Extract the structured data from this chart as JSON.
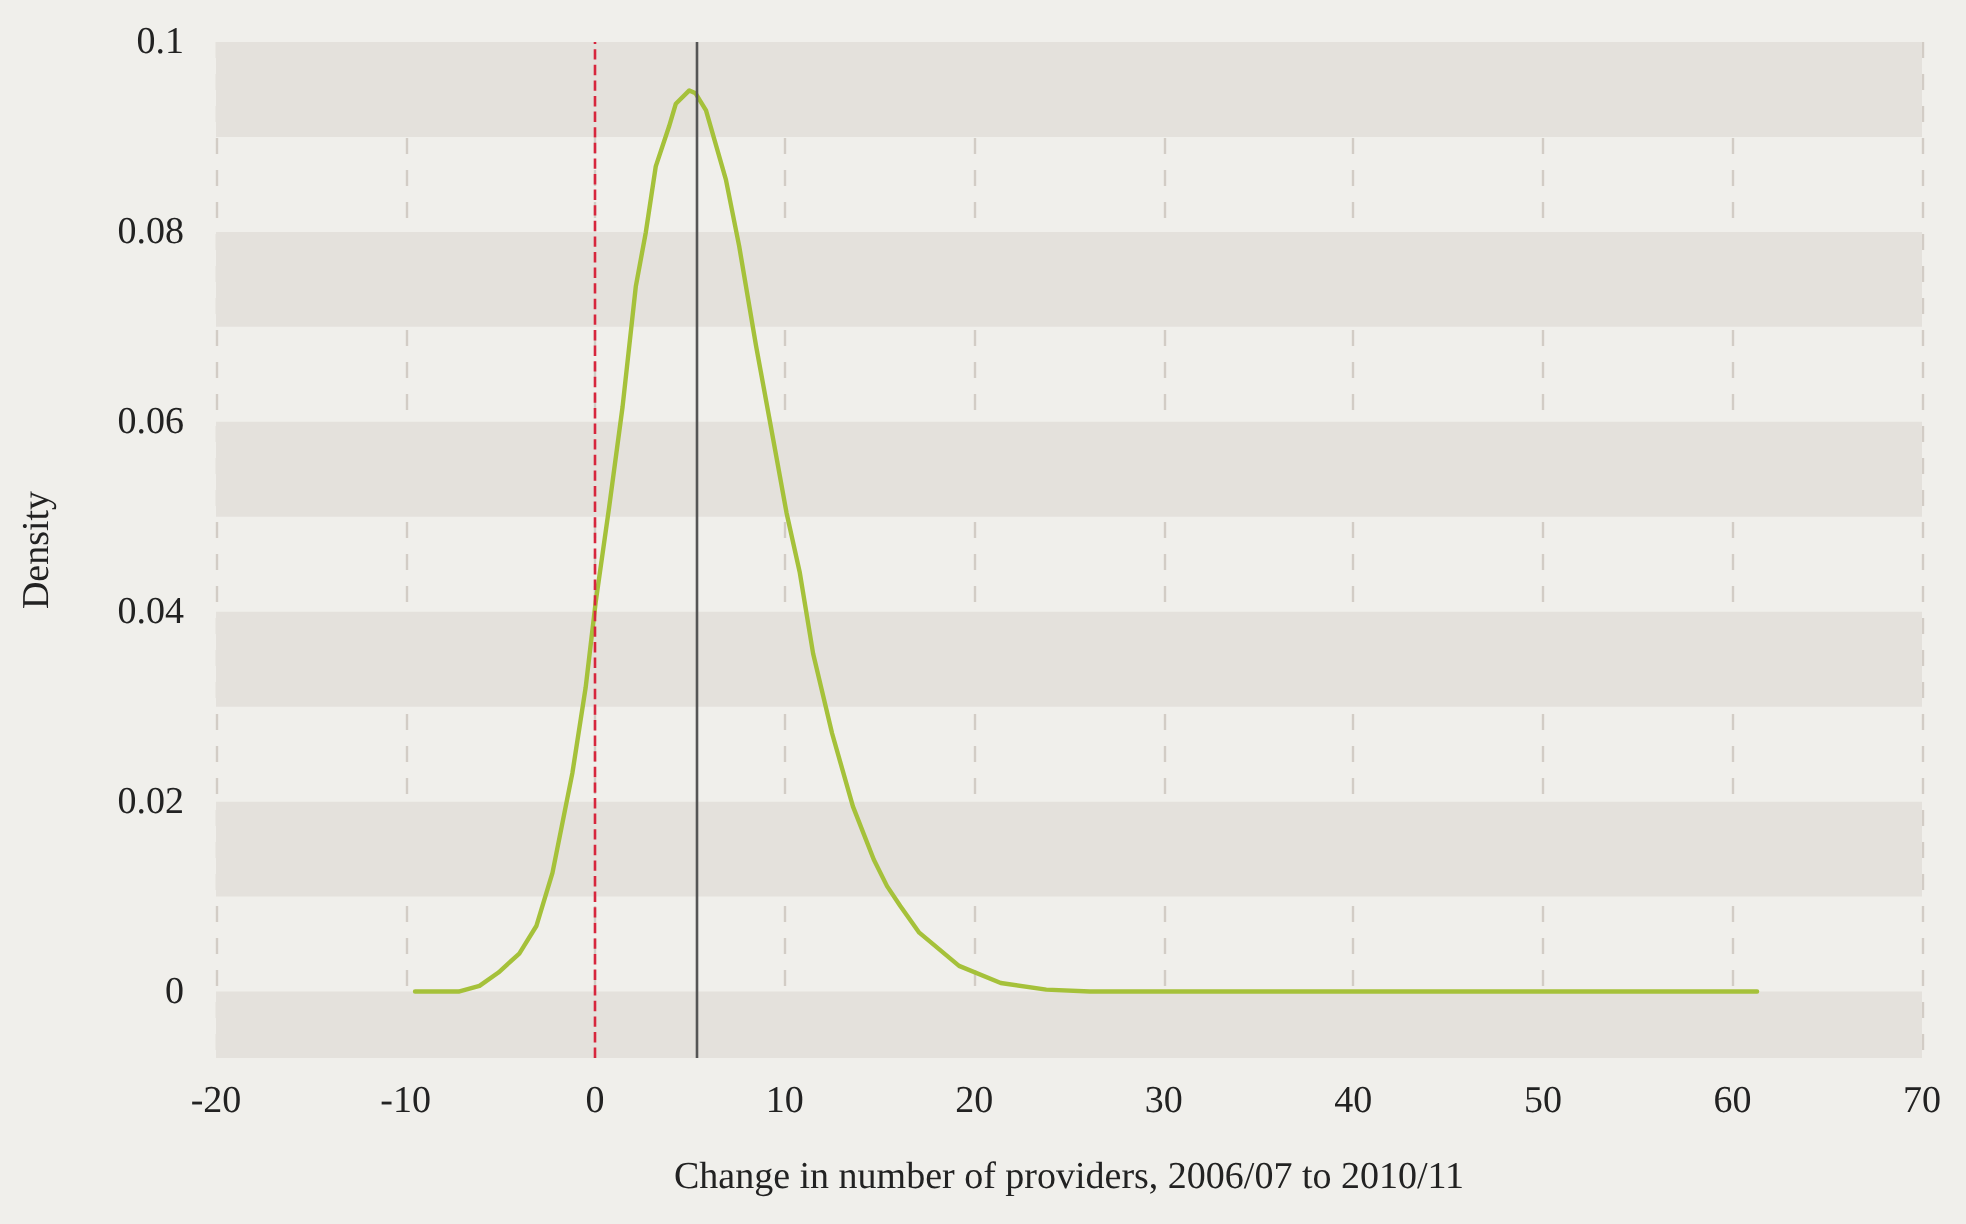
{
  "chart_data": {
    "type": "line",
    "xlabel": "Change in number of providers, 2006/07 to 2010/11",
    "ylabel": "Density",
    "x": [
      -9.5,
      -7.2,
      -6.1,
      -5.1,
      -4.0,
      -3.1,
      -2.25,
      -1.2,
      -0.5,
      0.03,
      0.74,
      1.45,
      2.15,
      2.67,
      3.2,
      3.9,
      4.26,
      4.97,
      5.3,
      5.85,
      6.9,
      7.6,
      8.5,
      9.4,
      10.1,
      10.8,
      11.5,
      12.5,
      13.6,
      14.7,
      15.4,
      16.1,
      17.1,
      19.2,
      21.4,
      23.8,
      26.1,
      35,
      45,
      55,
      61.3
    ],
    "series": [
      {
        "color": "#a5c13a",
        "values": [
          0,
          0,
          0.0006,
          0.002,
          0.004,
          0.0069,
          0.0125,
          0.023,
          0.032,
          0.041,
          0.051,
          0.0616,
          0.0743,
          0.0799,
          0.0869,
          0.0911,
          0.0935,
          0.0949,
          0.0946,
          0.0928,
          0.0855,
          0.0785,
          0.0679,
          0.0581,
          0.0504,
          0.0441,
          0.0356,
          0.0272,
          0.0195,
          0.0139,
          0.0111,
          0.009,
          0.0062,
          0.0027,
          0.0009,
          0.0002,
          0,
          0,
          0,
          0,
          0
        ]
      }
    ],
    "xlim": [
      -20,
      70
    ],
    "xticks": [
      -20,
      -10,
      0,
      10,
      20,
      30,
      40,
      50,
      60,
      70
    ],
    "ylim": [
      -0.007,
      0.1
    ],
    "yticks": [
      0,
      0.02,
      0.04,
      0.06,
      0.08,
      0.1
    ],
    "ref_lines": [
      {
        "axis": "x",
        "value": 0,
        "color": "#d7263d",
        "line_style": "dashed"
      },
      {
        "axis": "x",
        "value": 5.4,
        "color": "#555555",
        "line_style": "solid"
      }
    ],
    "bands": [
      {
        "axis": "y",
        "from": -0.007,
        "to": 0,
        "color": "#e4e1dc"
      },
      {
        "axis": "y",
        "from": 0.01,
        "to": 0.02,
        "color": "#e4e1dc"
      },
      {
        "axis": "y",
        "from": 0.03,
        "to": 0.04,
        "color": "#e4e1dc"
      },
      {
        "axis": "y",
        "from": 0.05,
        "to": 0.06,
        "color": "#e4e1dc"
      },
      {
        "axis": "y",
        "from": 0.07,
        "to": 0.08,
        "color": "#e4e1dc"
      },
      {
        "axis": "y",
        "from": 0.09,
        "to": 0.1,
        "color": "#e4e1dc"
      }
    ],
    "grid": "x",
    "marker": "none",
    "line_style": "solid"
  }
}
